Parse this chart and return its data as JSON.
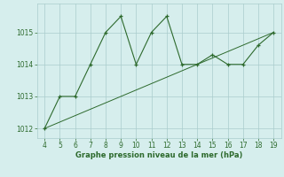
{
  "x_vals": [
    4,
    5,
    6,
    7,
    8,
    9,
    10,
    11,
    12,
    13,
    14,
    15,
    16,
    17,
    18,
    19
  ],
  "y_vals": [
    1012.0,
    1013.0,
    1013.0,
    1014.0,
    1015.0,
    1015.5,
    1014.0,
    1015.0,
    1015.5,
    1014.0,
    1014.0,
    1014.3,
    1014.0,
    1014.0,
    1014.6,
    1015.0
  ],
  "trend_x": [
    4,
    19
  ],
  "trend_y": [
    1012.0,
    1015.0
  ],
  "xlim": [
    3.5,
    19.5
  ],
  "ylim": [
    1011.7,
    1015.9
  ],
  "yticks": [
    1012,
    1013,
    1014,
    1015
  ],
  "xticks": [
    4,
    5,
    6,
    7,
    8,
    9,
    10,
    11,
    12,
    13,
    14,
    15,
    16,
    17,
    18,
    19
  ],
  "xlabel": "Graphe pression niveau de la mer (hPa)",
  "line_color": "#2d6a2d",
  "bg_color": "#d6eeed",
  "grid_color": "#aacccc"
}
